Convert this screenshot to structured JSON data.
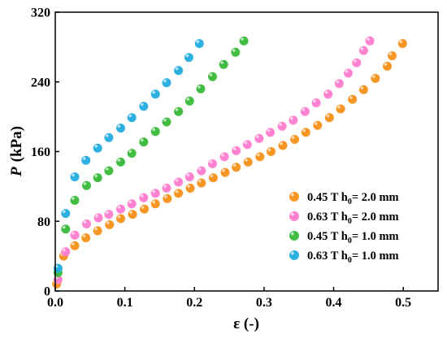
{
  "chart_data": {
    "type": "scatter",
    "title": "",
    "xlabel": "ε (-)",
    "ylabel_main": "P",
    "ylabel_unit": "(kPa)",
    "xlim": [
      0.0,
      0.55
    ],
    "ylim": [
      0,
      320
    ],
    "xticks": [
      0.0,
      0.1,
      0.2,
      0.3,
      0.4,
      0.5
    ],
    "xtick_labels": [
      "0.0",
      "0.1",
      "0.2",
      "0.3",
      "0.4",
      "0.5"
    ],
    "yticks": [
      0,
      80,
      160,
      240,
      320
    ],
    "ytick_labels": [
      "0",
      "80",
      "160",
      "240",
      "320"
    ],
    "grid": false,
    "legend_position": "lower-right",
    "series": [
      {
        "label_prefix": "0.45 T h",
        "label_sub": "0",
        "label_suffix": "= 2.0 mm",
        "color": "#f7931e",
        "points": [
          [
            0.002,
            8
          ],
          [
            0.012,
            40
          ],
          [
            0.028,
            52
          ],
          [
            0.044,
            61
          ],
          [
            0.061,
            69
          ],
          [
            0.078,
            76
          ],
          [
            0.094,
            83
          ],
          [
            0.111,
            88
          ],
          [
            0.128,
            94
          ],
          [
            0.144,
            100
          ],
          [
            0.161,
            106
          ],
          [
            0.177,
            112
          ],
          [
            0.194,
            118
          ],
          [
            0.21,
            124
          ],
          [
            0.227,
            130
          ],
          [
            0.244,
            136
          ],
          [
            0.26,
            142
          ],
          [
            0.277,
            148
          ],
          [
            0.294,
            154
          ],
          [
            0.31,
            160
          ],
          [
            0.327,
            167
          ],
          [
            0.344,
            174
          ],
          [
            0.36,
            182
          ],
          [
            0.377,
            190
          ],
          [
            0.394,
            199
          ],
          [
            0.41,
            209
          ],
          [
            0.427,
            220
          ],
          [
            0.443,
            231
          ],
          [
            0.46,
            244
          ],
          [
            0.477,
            258
          ],
          [
            0.484,
            270
          ],
          [
            0.499,
            284
          ]
        ]
      },
      {
        "label_prefix": "0.63 T h",
        "label_sub": "0",
        "label_suffix": "= 2.0 mm",
        "color": "#ff7fcf",
        "points": [
          [
            0.004,
            13
          ],
          [
            0.015,
            45
          ],
          [
            0.028,
            64
          ],
          [
            0.045,
            77
          ],
          [
            0.062,
            84
          ],
          [
            0.077,
            88
          ],
          [
            0.094,
            94
          ],
          [
            0.11,
            100
          ],
          [
            0.127,
            107
          ],
          [
            0.144,
            112
          ],
          [
            0.16,
            118
          ],
          [
            0.177,
            125
          ],
          [
            0.193,
            131
          ],
          [
            0.21,
            138
          ],
          [
            0.226,
            146
          ],
          [
            0.243,
            154
          ],
          [
            0.26,
            161
          ],
          [
            0.276,
            168
          ],
          [
            0.293,
            175
          ],
          [
            0.309,
            182
          ],
          [
            0.326,
            189
          ],
          [
            0.342,
            196
          ],
          [
            0.359,
            206
          ],
          [
            0.375,
            216
          ],
          [
            0.392,
            226
          ],
          [
            0.408,
            238
          ],
          [
            0.421,
            250
          ],
          [
            0.433,
            262
          ],
          [
            0.443,
            276
          ],
          [
            0.452,
            287
          ]
        ]
      },
      {
        "label_prefix": "0.45 T h",
        "label_sub": "0",
        "label_suffix": "= 1.0 mm",
        "color": "#3dbb3d",
        "points": [
          [
            0.004,
            21
          ],
          [
            0.015,
            71
          ],
          [
            0.028,
            104
          ],
          [
            0.045,
            121
          ],
          [
            0.061,
            130
          ],
          [
            0.077,
            138
          ],
          [
            0.094,
            148
          ],
          [
            0.11,
            158
          ],
          [
            0.127,
            171
          ],
          [
            0.144,
            183
          ],
          [
            0.16,
            194
          ],
          [
            0.177,
            206
          ],
          [
            0.193,
            218
          ],
          [
            0.209,
            232
          ],
          [
            0.226,
            246
          ],
          [
            0.242,
            260
          ],
          [
            0.259,
            274
          ],
          [
            0.271,
            287
          ]
        ]
      },
      {
        "label_prefix": "0.63 T h",
        "label_sub": "0",
        "label_suffix": "= 1.0 mm",
        "color": "#27aee0",
        "points": [
          [
            0.004,
            26
          ],
          [
            0.015,
            89
          ],
          [
            0.028,
            131
          ],
          [
            0.044,
            150
          ],
          [
            0.061,
            164
          ],
          [
            0.077,
            176
          ],
          [
            0.094,
            187
          ],
          [
            0.11,
            199
          ],
          [
            0.127,
            212
          ],
          [
            0.144,
            226
          ],
          [
            0.16,
            239
          ],
          [
            0.177,
            253
          ],
          [
            0.192,
            268
          ],
          [
            0.207,
            284
          ]
        ]
      }
    ]
  }
}
